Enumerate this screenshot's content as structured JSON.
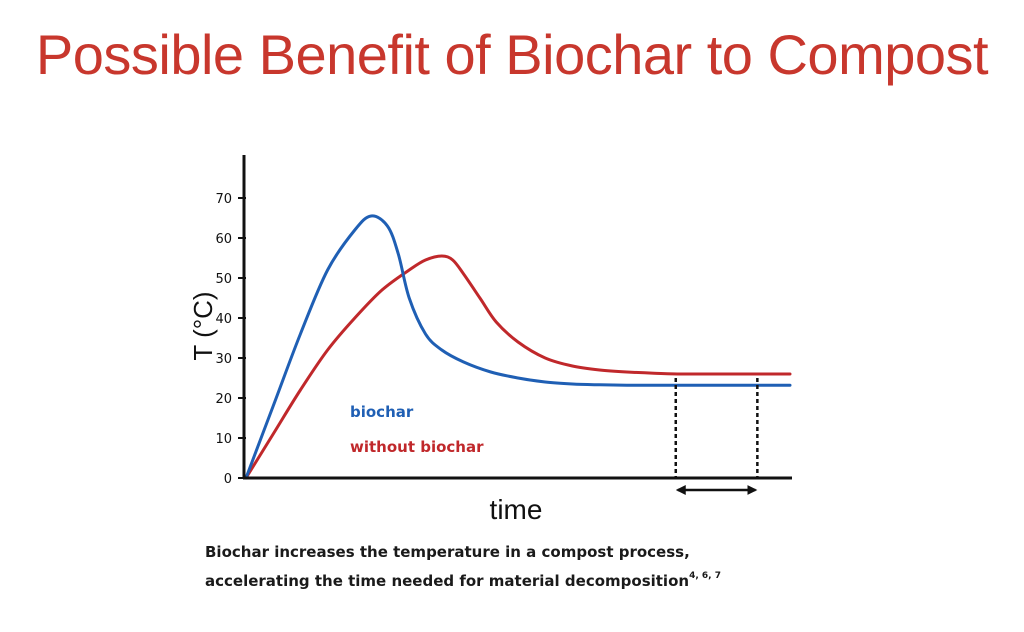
{
  "slide": {
    "title": "Possible Benefit of Biochar to Compost"
  },
  "caption": {
    "line1": "Biochar increases the temperature in a compost process,",
    "line2": "accelerating the time needed for material decomposition",
    "superscript": "4, 6, 7"
  },
  "chart_data": {
    "type": "line",
    "xlabel": "time",
    "ylabel": "T (°C)",
    "ylim": [
      0,
      80
    ],
    "xlim": [
      0,
      100
    ],
    "yticks": [
      0,
      10,
      20,
      30,
      40,
      50,
      60,
      70
    ],
    "grid": false,
    "legend_position": "inside-lower-left",
    "series": [
      {
        "name": "biochar",
        "color": "#1f5fb4",
        "x": [
          0,
          5,
          10,
          15,
          20,
          23,
          26,
          28,
          30,
          33,
          36,
          40,
          45,
          50,
          55,
          60,
          65,
          70,
          75,
          80,
          85,
          90,
          95,
          100
        ],
        "y": [
          0,
          18,
          36,
          52,
          62,
          65.5,
          63,
          56,
          45,
          36,
          32,
          29,
          26.5,
          25,
          24,
          23.5,
          23.3,
          23.2,
          23.2,
          23.2,
          23.2,
          23.2,
          23.2,
          23.2
        ]
      },
      {
        "name": "without biochar",
        "color": "#c0282b",
        "x": [
          0,
          5,
          10,
          15,
          20,
          25,
          30,
          33,
          36,
          38,
          40,
          43,
          46,
          50,
          55,
          60,
          65,
          70,
          75,
          80,
          85,
          90,
          95,
          100
        ],
        "y": [
          0,
          11,
          22,
          32,
          40,
          47,
          52,
          54.5,
          55.5,
          54.5,
          51,
          45,
          39,
          34,
          30,
          28,
          27,
          26.5,
          26.2,
          26,
          26,
          26,
          26,
          26
        ]
      }
    ],
    "annotations": {
      "interval_markers_x": [
        79,
        94
      ],
      "interval_arrow": "double-headed"
    }
  }
}
